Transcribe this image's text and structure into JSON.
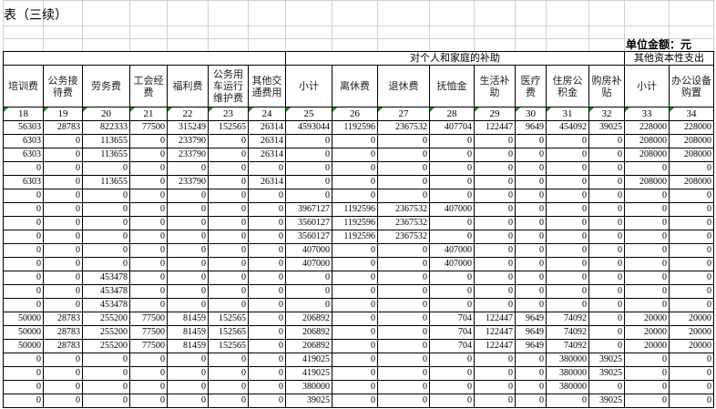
{
  "title": "表（三续）",
  "unit_label": "单位金额：元",
  "groups": {
    "subsidies": "对个人和家庭的补助",
    "capital": "其他资本性支出"
  },
  "headers": [
    "培训费",
    "公务接待费",
    "劳务费",
    "工会经费",
    "福利费",
    "公务用车运行维护费",
    "其他交通费用",
    "小计",
    "离休费",
    "退休费",
    "抚恤金",
    "生活补助",
    "医疗费",
    "住房公积金",
    "购房补贴",
    "小计",
    "办公设备购置"
  ],
  "column_numbers": [
    "18",
    "19",
    "20",
    "21",
    "22",
    "23",
    "24",
    "25",
    "26",
    "27",
    "28",
    "29",
    "30",
    "31",
    "32",
    "33",
    "34"
  ],
  "rows": [
    [
      "56303",
      "28783",
      "822333",
      "77500",
      "315249",
      "152565",
      "26314",
      "4593044",
      "1192596",
      "2367532",
      "407704",
      "122447",
      "9649",
      "454092",
      "39025",
      "228000",
      "228000"
    ],
    [
      "6303",
      "0",
      "113655",
      "0",
      "233790",
      "0",
      "26314",
      "0",
      "0",
      "0",
      "0",
      "0",
      "0",
      "0",
      "0",
      "208000",
      "208000"
    ],
    [
      "6303",
      "0",
      "113655",
      "0",
      "233790",
      "0",
      "26314",
      "0",
      "0",
      "0",
      "0",
      "0",
      "0",
      "0",
      "0",
      "208000",
      "208000"
    ],
    [
      "0",
      "0",
      "0",
      "0",
      "0",
      "0",
      "0",
      "0",
      "0",
      "0",
      "0",
      "0",
      "0",
      "0",
      "0",
      "0",
      "0"
    ],
    [
      "6303",
      "0",
      "113655",
      "0",
      "233790",
      "0",
      "26314",
      "0",
      "0",
      "0",
      "0",
      "0",
      "0",
      "0",
      "0",
      "208000",
      "208000"
    ],
    [
      "0",
      "0",
      "0",
      "0",
      "0",
      "0",
      "0",
      "0",
      "0",
      "0",
      "0",
      "0",
      "0",
      "0",
      "0",
      "0",
      "0"
    ],
    [
      "0",
      "0",
      "0",
      "0",
      "0",
      "0",
      "0",
      "3967127",
      "1192596",
      "2367532",
      "407000",
      "0",
      "0",
      "0",
      "0",
      "0",
      "0"
    ],
    [
      "0",
      "0",
      "0",
      "0",
      "0",
      "0",
      "0",
      "3560127",
      "1192596",
      "2367532",
      "0",
      "0",
      "0",
      "0",
      "0",
      "0",
      "0"
    ],
    [
      "0",
      "0",
      "0",
      "0",
      "0",
      "0",
      "0",
      "3560127",
      "1192596",
      "2367532",
      "0",
      "0",
      "0",
      "0",
      "0",
      "0",
      "0"
    ],
    [
      "0",
      "0",
      "0",
      "0",
      "0",
      "0",
      "0",
      "407000",
      "0",
      "0",
      "407000",
      "0",
      "0",
      "0",
      "0",
      "0",
      "0"
    ],
    [
      "0",
      "0",
      "0",
      "0",
      "0",
      "0",
      "0",
      "407000",
      "0",
      "0",
      "407000",
      "0",
      "0",
      "0",
      "0",
      "0",
      "0"
    ],
    [
      "0",
      "0",
      "453478",
      "0",
      "0",
      "0",
      "0",
      "0",
      "0",
      "0",
      "0",
      "0",
      "0",
      "0",
      "0",
      "0",
      "0"
    ],
    [
      "0",
      "0",
      "453478",
      "0",
      "0",
      "0",
      "0",
      "0",
      "0",
      "0",
      "0",
      "0",
      "0",
      "0",
      "0",
      "0",
      "0"
    ],
    [
      "0",
      "0",
      "453478",
      "0",
      "0",
      "0",
      "0",
      "0",
      "0",
      "0",
      "0",
      "0",
      "0",
      "0",
      "0",
      "0",
      "0"
    ],
    [
      "50000",
      "28783",
      "255200",
      "77500",
      "81459",
      "152565",
      "0",
      "206892",
      "0",
      "0",
      "704",
      "122447",
      "9649",
      "74092",
      "0",
      "20000",
      "20000"
    ],
    [
      "50000",
      "28783",
      "255200",
      "77500",
      "81459",
      "152565",
      "0",
      "206892",
      "0",
      "0",
      "704",
      "122447",
      "9649",
      "74092",
      "0",
      "20000",
      "20000"
    ],
    [
      "50000",
      "28783",
      "255200",
      "77500",
      "81459",
      "152565",
      "0",
      "206892",
      "0",
      "0",
      "704",
      "122447",
      "9649",
      "74092",
      "0",
      "20000",
      "20000"
    ],
    [
      "0",
      "0",
      "0",
      "0",
      "0",
      "0",
      "0",
      "419025",
      "0",
      "0",
      "0",
      "0",
      "0",
      "380000",
      "39025",
      "0",
      "0"
    ],
    [
      "0",
      "0",
      "0",
      "0",
      "0",
      "0",
      "0",
      "419025",
      "0",
      "0",
      "0",
      "0",
      "0",
      "380000",
      "39025",
      "0",
      "0"
    ],
    [
      "0",
      "0",
      "0",
      "0",
      "0",
      "0",
      "0",
      "380000",
      "0",
      "0",
      "0",
      "0",
      "0",
      "380000",
      "0",
      "0",
      "0"
    ],
    [
      "0",
      "0",
      "0",
      "0",
      "0",
      "0",
      "0",
      "39025",
      "0",
      "0",
      "0",
      "0",
      "0",
      "0",
      "39025",
      "0",
      "0"
    ]
  ]
}
